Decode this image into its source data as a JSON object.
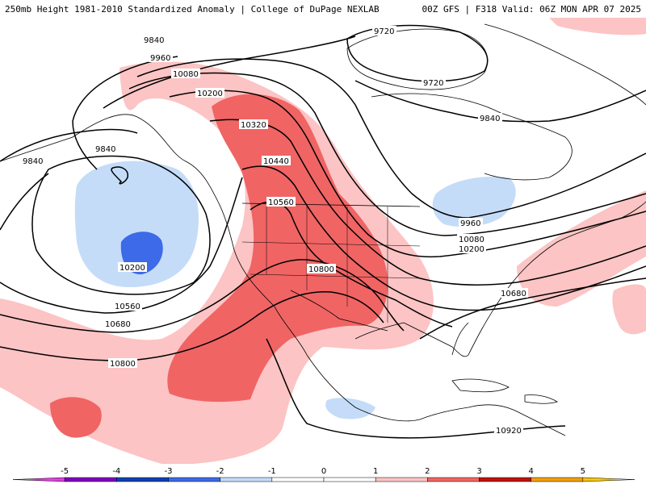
{
  "header": {
    "title": "250mb Height 1981-2010 Standardized Anomaly | College of DuPage NEXLAB",
    "run_info": "00Z GFS | F318 Valid: 06Z MON APR 07 2025"
  },
  "contour_labels": [
    "9840",
    "9960",
    "10080",
    "10200",
    "9720",
    "9720",
    "9840",
    "10320",
    "9840",
    "9840",
    "10440",
    "10560",
    "10200",
    "9960",
    "10080",
    "10200",
    "10800",
    "10680",
    "10560",
    "10680",
    "10800",
    "10920"
  ],
  "colorbar": {
    "ticks": [
      "-5",
      "-4",
      "-3",
      "-2",
      "-1",
      "0",
      "1",
      "2",
      "3",
      "4",
      "5"
    ],
    "colors": [
      "#e040e0",
      "#8000c0",
      "#1040b0",
      "#3c6ae8",
      "#c4dcf8",
      "#ffffff",
      "#ffffff",
      "#fcc4c4",
      "#f06464",
      "#c01010",
      "#f0a000",
      "#f8c800"
    ]
  }
}
